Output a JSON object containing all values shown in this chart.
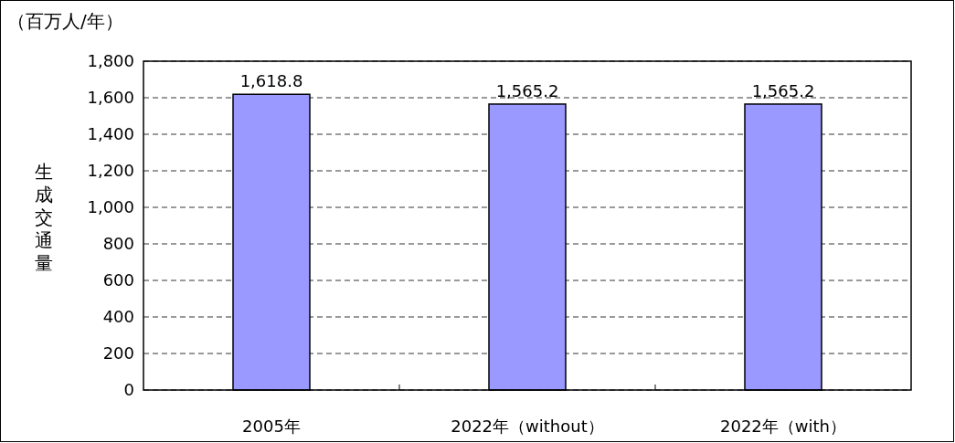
{
  "chart_data": {
    "type": "bar",
    "ylabel": "生成交通量",
    "annotations": [
      "（百万人/年）"
    ],
    "categories": [
      "2005年",
      "2022年（without）",
      "2022年（with）"
    ],
    "values": [
      1618.8,
      1565.2,
      1565.2
    ],
    "color": "#9999ff",
    "ylim": [
      0,
      1800
    ],
    "yticks": [
      {
        "value": 0,
        "label": "0"
      },
      {
        "value": 200,
        "label": "200"
      },
      {
        "value": 400,
        "label": "400"
      },
      {
        "value": 600,
        "label": "600"
      },
      {
        "value": 800,
        "label": "800"
      },
      {
        "value": 1000,
        "label": "1,000"
      },
      {
        "value": 1200,
        "label": "1,200"
      },
      {
        "value": 1400,
        "label": "1,400"
      },
      {
        "value": 1600,
        "label": "1,600"
      },
      {
        "value": 1800,
        "label": "1,800"
      }
    ],
    "grid": "y",
    "value_labels": [
      "1,618.8",
      "1,565.2",
      "1,565.2"
    ]
  }
}
